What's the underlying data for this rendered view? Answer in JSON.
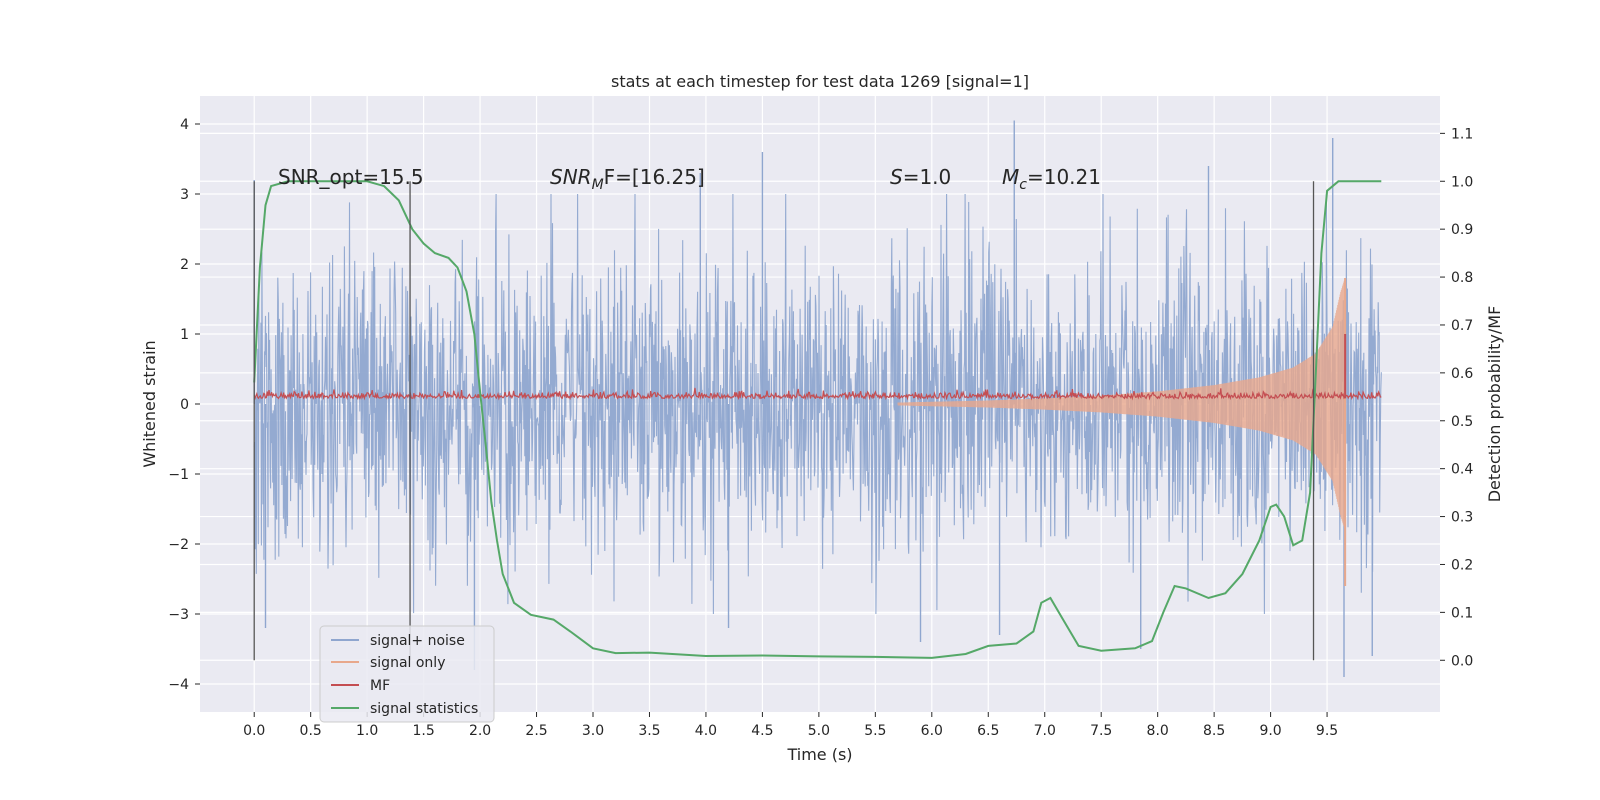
{
  "chart_data": {
    "type": "line",
    "title": "stats at each timestep for test data 1269 [signal=1]",
    "xlabel": "Time (s)",
    "ylabel": "Whitened strain",
    "ylabel_right": "Detection probability/MF",
    "xlim": [
      -0.48,
      10.5
    ],
    "ylim": [
      -4.4,
      4.4
    ],
    "ylim_right": [
      -0.108,
      1.178
    ],
    "x_ticks": [
      "0.0",
      "0.5",
      "1.0",
      "1.5",
      "2.0",
      "2.5",
      "3.0",
      "3.5",
      "4.0",
      "4.5",
      "5.0",
      "5.5",
      "6.0",
      "6.5",
      "7.0",
      "7.5",
      "8.0",
      "8.5",
      "9.0",
      "9.5"
    ],
    "x_tick_values": [
      0.0,
      0.5,
      1.0,
      1.5,
      2.0,
      2.5,
      3.0,
      3.5,
      4.0,
      4.5,
      5.0,
      5.5,
      6.0,
      6.5,
      7.0,
      7.5,
      8.0,
      8.5,
      9.0,
      9.5
    ],
    "y_ticks": [
      "4",
      "3",
      "2",
      "1",
      "0",
      "−1",
      "−2",
      "−3",
      "−4"
    ],
    "y_tick_values": [
      4,
      3,
      2,
      1,
      0,
      -1,
      -2,
      -3,
      -4
    ],
    "y_right_ticks": [
      "1.1",
      "1.0",
      "0.9",
      "0.8",
      "0.7",
      "0.6",
      "0.5",
      "0.4",
      "0.3",
      "0.2",
      "0.1",
      "0.0"
    ],
    "y_right_tick_values": [
      1.1,
      1.0,
      0.9,
      0.8,
      0.7,
      0.6,
      0.5,
      0.4,
      0.3,
      0.2,
      0.1,
      0.0
    ],
    "grid": true,
    "legend_position": "lower-left",
    "legend": [
      {
        "label": "signal+ noise",
        "color": "#8fa6cf"
      },
      {
        "label": "signal only",
        "color": "#e8a88c"
      },
      {
        "label": "MF",
        "color": "#c44e52"
      },
      {
        "label": "signal statistics",
        "color": "#55a868"
      }
    ],
    "annotations": {
      "snr_opt": "SNR_opt=15.5",
      "snr_mf_base": "SNR",
      "snr_mf_sub": "M",
      "snr_mf_rest": "F=[16.25]",
      "s_var": "S",
      "s_rest": "=1.0",
      "mc_var": "M",
      "mc_sub": "c",
      "mc_rest": "=10.21"
    },
    "vertical_lines_x": [
      0.0,
      1.38,
      9.38
    ],
    "series": [
      {
        "name": "signal+ noise",
        "color": "#8fa6cf",
        "x_range": [
          0.0,
          9.98
        ],
        "typical_envelope": [
          -2.4,
          2.4
        ],
        "peaks": [
          [
            0.0,
            3.2
          ],
          [
            0.1,
            -3.2
          ],
          [
            4.5,
            3.6
          ],
          [
            5.9,
            -3.4
          ],
          [
            6.73,
            4.05
          ],
          [
            6.6,
            -3.3
          ],
          [
            7.85,
            -3.5
          ],
          [
            8.45,
            3.4
          ],
          [
            9.55,
            3.8
          ],
          [
            9.65,
            -3.9
          ],
          [
            9.9,
            -3.6
          ],
          [
            1.95,
            -3.8
          ],
          [
            3.95,
            3.3
          ],
          [
            4.2,
            -3.2
          ]
        ]
      },
      {
        "name": "signal only",
        "color": "#e8a88c",
        "chirp_start": 5.7,
        "merger_time": 9.66,
        "envelope": [
          [
            5.7,
            0.02
          ],
          [
            6.5,
            0.05
          ],
          [
            7.0,
            0.08
          ],
          [
            7.5,
            0.12
          ],
          [
            8.0,
            0.18
          ],
          [
            8.5,
            0.27
          ],
          [
            8.9,
            0.38
          ],
          [
            9.2,
            0.52
          ],
          [
            9.4,
            0.72
          ],
          [
            9.55,
            1.1
          ],
          [
            9.62,
            1.6
          ],
          [
            9.66,
            1.8
          ]
        ]
      },
      {
        "name": "MF",
        "color": "#c44e52",
        "x_range": [
          0.0,
          9.98
        ],
        "base_value": 0.08,
        "peak": [
          9.66,
          1.0
        ]
      },
      {
        "name": "signal statistics",
        "color": "#55a868",
        "points": [
          [
            0.0,
            0.58
          ],
          [
            0.05,
            0.82
          ],
          [
            0.1,
            0.95
          ],
          [
            0.15,
            0.99
          ],
          [
            0.3,
            1.0
          ],
          [
            0.6,
            1.0
          ],
          [
            1.0,
            1.0
          ],
          [
            1.15,
            0.99
          ],
          [
            1.28,
            0.96
          ],
          [
            1.4,
            0.9
          ],
          [
            1.5,
            0.87
          ],
          [
            1.6,
            0.85
          ],
          [
            1.72,
            0.84
          ],
          [
            1.8,
            0.82
          ],
          [
            1.88,
            0.77
          ],
          [
            1.95,
            0.68
          ],
          [
            2.0,
            0.56
          ],
          [
            2.05,
            0.45
          ],
          [
            2.1,
            0.33
          ],
          [
            2.15,
            0.25
          ],
          [
            2.2,
            0.18
          ],
          [
            2.3,
            0.12
          ],
          [
            2.45,
            0.095
          ],
          [
            2.65,
            0.085
          ],
          [
            2.8,
            0.06
          ],
          [
            3.0,
            0.025
          ],
          [
            3.2,
            0.015
          ],
          [
            3.5,
            0.016
          ],
          [
            4.0,
            0.009
          ],
          [
            4.5,
            0.01
          ],
          [
            5.0,
            0.008
          ],
          [
            5.5,
            0.007
          ],
          [
            6.0,
            0.005
          ],
          [
            6.3,
            0.013
          ],
          [
            6.5,
            0.03
          ],
          [
            6.75,
            0.035
          ],
          [
            6.9,
            0.06
          ],
          [
            6.97,
            0.12
          ],
          [
            7.05,
            0.13
          ],
          [
            7.15,
            0.09
          ],
          [
            7.3,
            0.03
          ],
          [
            7.5,
            0.02
          ],
          [
            7.8,
            0.025
          ],
          [
            7.95,
            0.04
          ],
          [
            8.05,
            0.1
          ],
          [
            8.15,
            0.155
          ],
          [
            8.25,
            0.15
          ],
          [
            8.45,
            0.13
          ],
          [
            8.6,
            0.14
          ],
          [
            8.75,
            0.18
          ],
          [
            8.9,
            0.25
          ],
          [
            9.0,
            0.32
          ],
          [
            9.05,
            0.325
          ],
          [
            9.12,
            0.3
          ],
          [
            9.2,
            0.24
          ],
          [
            9.28,
            0.25
          ],
          [
            9.35,
            0.35
          ],
          [
            9.4,
            0.6
          ],
          [
            9.45,
            0.85
          ],
          [
            9.5,
            0.98
          ],
          [
            9.6,
            1.0
          ],
          [
            9.8,
            1.0
          ],
          [
            9.98,
            1.0
          ]
        ]
      }
    ]
  }
}
